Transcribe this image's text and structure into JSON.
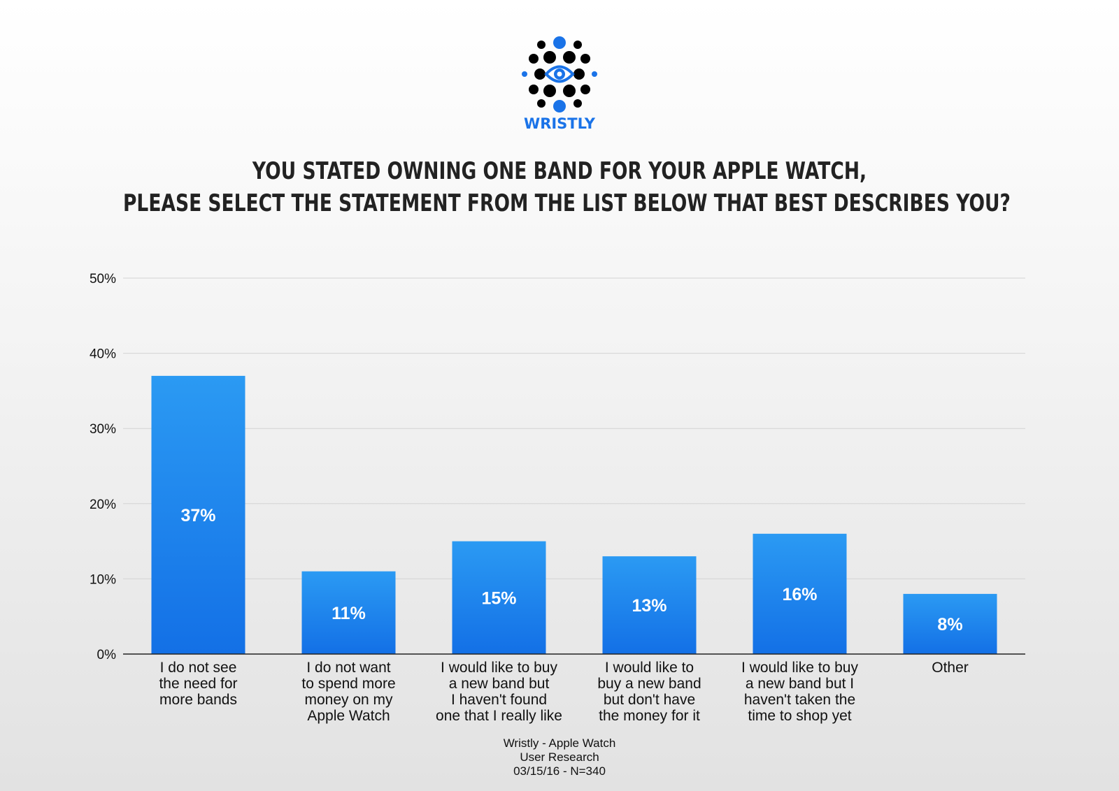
{
  "brand": {
    "name": "WRISTLY",
    "logo_icon": "eye-dots-logo-icon",
    "accent": "#1a73e8",
    "dot_color": "#000000"
  },
  "title": {
    "line1": "YOU STATED OWNING ONE BAND FOR YOUR APPLE WATCH,",
    "line2": "PLEASE SELECT THE STATEMENT FROM THE LIST BELOW THAT BEST DESCRIBES YOU?"
  },
  "footer": {
    "line1": "Wristly - Apple Watch",
    "line2": "User Research",
    "line3": "03/15/16 - N=340"
  },
  "chart_data": {
    "type": "bar",
    "categories": [
      [
        "I do not see",
        "the need for",
        "more bands"
      ],
      [
        "I do not want",
        "to spend more",
        "money on my",
        "Apple Watch"
      ],
      [
        "I would like to buy",
        "a new band but",
        "I haven't found",
        "one that I really like"
      ],
      [
        "I would like to",
        "buy a new band",
        "but don't have",
        "the money for it"
      ],
      [
        "I would like to buy",
        "a new band but I",
        "haven't taken the",
        "time to shop yet"
      ],
      [
        "Other"
      ]
    ],
    "values": [
      37,
      11,
      15,
      13,
      16,
      8
    ],
    "data_labels": [
      "37%",
      "11%",
      "15%",
      "13%",
      "16%",
      "8%"
    ],
    "ylim": [
      0,
      50
    ],
    "yticks": [
      0,
      10,
      20,
      30,
      40,
      50
    ],
    "ytick_labels": [
      "0%",
      "10%",
      "20%",
      "30%",
      "40%",
      "50%"
    ],
    "grid": true,
    "bar_color_top": "#2b9af3",
    "bar_color_bottom": "#1370e6"
  }
}
